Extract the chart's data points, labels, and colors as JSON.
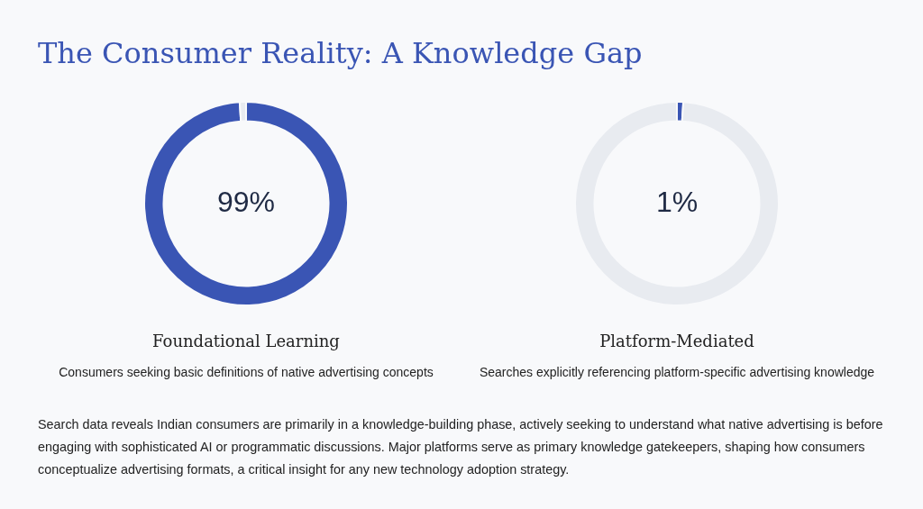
{
  "chart_data": [
    {
      "type": "other",
      "title": "The Consumer Reality: A Knowledge Gap"
    },
    {
      "type": "donut",
      "title": "Foundational Learning",
      "subtitle": "Consumers seeking basic definitions of native advertising concepts",
      "categories": [
        null,
        null
      ],
      "values": [
        99,
        1
      ],
      "colors": [
        "#3a55b4",
        "#e8ebf0"
      ],
      "value_labels": [
        "99%",
        null
      ]
    },
    {
      "type": "donut",
      "title": "Platform-Mediated",
      "subtitle": "Searches explicitly referencing platform-specific advertising knowledge",
      "categories": [
        null,
        null
      ],
      "values": [
        1,
        99
      ],
      "colors": [
        "#3a55b4",
        "#e8ebf0"
      ],
      "value_labels": [
        "1%",
        null
      ]
    },
    {
      "type": "other",
      "annotations": [
        "Search data reveals Indian consumers are primarily in a knowledge-building phase, actively seeking to understand what native advertising is before engaging with sophisticated AI or programmatic discussions. Major platforms serve as primary knowledge gatekeepers, shaping how consumers conceptualize advertising formats, a critical insight for any new technology adoption strategy."
      ]
    }
  ]
}
